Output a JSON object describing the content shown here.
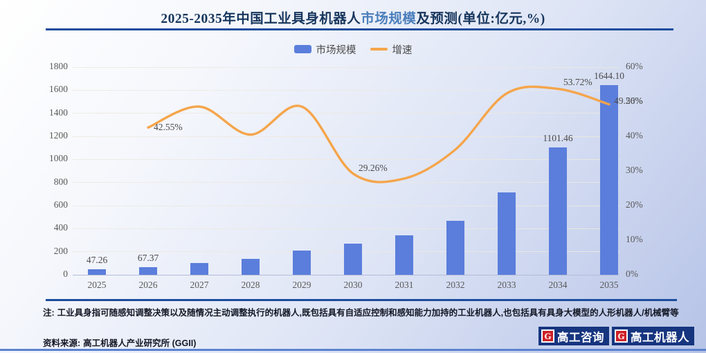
{
  "title": {
    "prefix": "2025-2035年中国工业具身机器人",
    "highlight": "市场规模",
    "suffix": "及预测(单位:亿元,%)"
  },
  "legend": [
    {
      "label": "市场规模",
      "type": "bar",
      "color": "#5b7edc"
    },
    {
      "label": "增速",
      "type": "line",
      "color": "#f5a54b"
    }
  ],
  "chart_data": {
    "type": "bar+line",
    "title": "2025-2035年中国工业具身机器人市场规模及预测(单位:亿元,%)",
    "categories": [
      "2025",
      "2026",
      "2027",
      "2028",
      "2029",
      "2030",
      "2031",
      "2032",
      "2033",
      "2034",
      "2035"
    ],
    "series": [
      {
        "name": "市场规模",
        "type": "bar",
        "axis": "left",
        "unit": "亿元",
        "values": [
          47.26,
          67.37,
          100.1,
          140.6,
          208.9,
          270.0,
          345.0,
          470.0,
          716.5,
          1101.46,
          1644.1
        ],
        "shown_labels": [
          "47.26",
          "67.37",
          null,
          null,
          null,
          null,
          null,
          null,
          null,
          "1101.46",
          "1644.10"
        ],
        "note": "unlabeled bar values estimated from pixel heights"
      },
      {
        "name": "增速",
        "type": "line",
        "axis": "right",
        "unit": "%",
        "values": [
          null,
          42.55,
          48.6,
          40.5,
          48.6,
          29.26,
          27.8,
          36.2,
          52.4,
          53.72,
          49.26
        ],
        "shown_labels": [
          null,
          "42.55%",
          null,
          null,
          null,
          "29.26%",
          null,
          null,
          null,
          "53.72%",
          "49.26%"
        ],
        "note": "unlabeled growth values estimated from curve position"
      }
    ],
    "left_axis": {
      "min": 0,
      "max": 1800,
      "step": 200,
      "labels": [
        "0",
        "200",
        "400",
        "600",
        "800",
        "1000",
        "1200",
        "1400",
        "1600",
        "1800"
      ]
    },
    "right_axis": {
      "min": 0,
      "max": 60,
      "step": 10,
      "labels": [
        "0%",
        "10%",
        "20%",
        "30%",
        "40%",
        "50%",
        "60%"
      ]
    },
    "legend_position": "top-center",
    "grid": true,
    "colors": {
      "bar": "#5b7edc",
      "line": "#f5a54b"
    }
  },
  "note": {
    "label": "注:",
    "text": "工业具身指可随感知调整决策以及随情况主动调整执行的机器人,既包括具有自适应控制和感知能力加持的工业机器人,也包括具有具身大模型的人形机器人/机械臂等"
  },
  "source": {
    "label": "资料来源:",
    "text": "高工机器人产业研究所 (GGII)"
  },
  "logos": [
    {
      "badge": "G",
      "text": "高工咨询"
    },
    {
      "badge": "G",
      "text": "高工机器人"
    }
  ]
}
